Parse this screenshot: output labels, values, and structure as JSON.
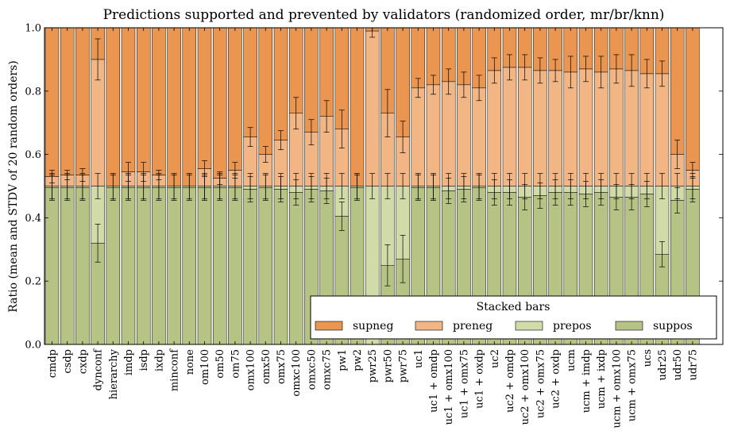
{
  "chart_data": {
    "type": "bar",
    "stacked": true,
    "title": "Predictions supported and prevented by validators (randomized order, mr/br/knn)",
    "xlabel": "",
    "ylabel": "Ratio (mean and STDV of 20 random orders)",
    "ylim": [
      0,
      1
    ],
    "yticks": [
      "0.0",
      "0.2",
      "0.4",
      "0.6",
      "0.8",
      "1.0"
    ],
    "grid": false,
    "legend": {
      "title": "Stacked bars",
      "placement": "lower-right",
      "columns": 4
    },
    "categories": [
      "cmdp",
      "csdp",
      "cxdp",
      "dynconf",
      "hierarchy",
      "imdp",
      "isdp",
      "ixdp",
      "minconf",
      "none",
      "om100",
      "om50",
      "om75",
      "omx100",
      "omx50",
      "omx75",
      "omxc100",
      "omxc50",
      "omxc75",
      "pw1",
      "pw2",
      "pwr25",
      "pwr50",
      "pwr75",
      "uc1",
      "uc1 + omdp",
      "uc1 + omx100",
      "uc1 + omx75",
      "uc1 + oxdp",
      "uc2",
      "uc2 + omdp",
      "uc2 + omx100",
      "uc2 + omx75",
      "uc2 + oxdp",
      "ucm",
      "ucm + imdp",
      "ucm + ixdp",
      "ucm + omx100",
      "ucm + omx75",
      "ucs",
      "udr25",
      "udr50",
      "udr75"
    ],
    "series": [
      {
        "name": "suppos",
        "color": "#b5c484",
        "values": [
          0.495,
          0.495,
          0.495,
          0.32,
          0.495,
          0.495,
          0.495,
          0.495,
          0.495,
          0.495,
          0.495,
          0.495,
          0.495,
          0.49,
          0.495,
          0.49,
          0.48,
          0.49,
          0.485,
          0.405,
          0.495,
          0.0,
          0.25,
          0.27,
          0.495,
          0.495,
          0.485,
          0.49,
          0.495,
          0.48,
          0.48,
          0.465,
          0.47,
          0.48,
          0.48,
          0.475,
          0.48,
          0.465,
          0.465,
          0.475,
          0.285,
          0.455,
          0.49
        ],
        "errors": [
          0.04,
          0.04,
          0.04,
          0.06,
          0.04,
          0.04,
          0.04,
          0.04,
          0.04,
          0.04,
          0.04,
          0.04,
          0.04,
          0.04,
          0.04,
          0.04,
          0.04,
          0.04,
          0.04,
          0.045,
          0.04,
          0.0,
          0.065,
          0.075,
          0.04,
          0.04,
          0.04,
          0.04,
          0.04,
          0.04,
          0.04,
          0.04,
          0.04,
          0.04,
          0.04,
          0.04,
          0.04,
          0.04,
          0.04,
          0.04,
          0.04,
          0.04,
          0.04
        ]
      },
      {
        "name": "prepos",
        "color": "#d1dba8",
        "values": [
          0.005,
          0.005,
          0.005,
          0.18,
          0.005,
          0.005,
          0.005,
          0.005,
          0.005,
          0.005,
          0.005,
          0.005,
          0.005,
          0.01,
          0.005,
          0.01,
          0.02,
          0.01,
          0.015,
          0.095,
          0.005,
          0.5,
          0.25,
          0.23,
          0.005,
          0.005,
          0.015,
          0.01,
          0.005,
          0.02,
          0.02,
          0.035,
          0.03,
          0.02,
          0.02,
          0.025,
          0.02,
          0.035,
          0.035,
          0.025,
          0.215,
          0.045,
          0.01
        ],
        "errors": [
          0.04,
          0.04,
          0.04,
          0.04,
          0.04,
          0.04,
          0.04,
          0.04,
          0.04,
          0.04,
          0.04,
          0.04,
          0.04,
          0.04,
          0.04,
          0.04,
          0.04,
          0.04,
          0.04,
          0.04,
          0.04,
          0.04,
          0.04,
          0.04,
          0.04,
          0.04,
          0.04,
          0.04,
          0.04,
          0.04,
          0.04,
          0.04,
          0.04,
          0.04,
          0.04,
          0.04,
          0.04,
          0.04,
          0.04,
          0.04,
          0.04,
          0.04,
          0.04
        ]
      },
      {
        "name": "preneg",
        "color": "#f2b684",
        "values": [
          0.03,
          0.035,
          0.035,
          0.4,
          0.0,
          0.045,
          0.045,
          0.035,
          0.0,
          0.0,
          0.055,
          0.025,
          0.05,
          0.155,
          0.1,
          0.145,
          0.23,
          0.17,
          0.22,
          0.18,
          0.0,
          0.49,
          0.23,
          0.155,
          0.31,
          0.32,
          0.33,
          0.32,
          0.31,
          0.365,
          0.375,
          0.375,
          0.365,
          0.365,
          0.36,
          0.37,
          0.36,
          0.37,
          0.365,
          0.355,
          0.355,
          0.1,
          0.05
        ],
        "errors": [
          0.02,
          0.015,
          0.02,
          0.065,
          0.0,
          0.03,
          0.03,
          0.015,
          0.0,
          0.0,
          0.025,
          0.02,
          0.025,
          0.03,
          0.025,
          0.03,
          0.05,
          0.04,
          0.05,
          0.06,
          0.0,
          0.02,
          0.075,
          0.05,
          0.03,
          0.03,
          0.04,
          0.04,
          0.04,
          0.04,
          0.04,
          0.04,
          0.04,
          0.035,
          0.05,
          0.04,
          0.05,
          0.045,
          0.05,
          0.045,
          0.04,
          0.045,
          0.025
        ]
      },
      {
        "name": "supneg",
        "color": "#ea9550",
        "values": [
          0.47,
          0.465,
          0.465,
          0.1,
          0.5,
          0.455,
          0.455,
          0.465,
          0.5,
          0.5,
          0.445,
          0.475,
          0.45,
          0.345,
          0.4,
          0.355,
          0.27,
          0.33,
          0.28,
          0.32,
          0.5,
          0.01,
          0.27,
          0.345,
          0.19,
          0.18,
          0.17,
          0.18,
          0.19,
          0.135,
          0.125,
          0.125,
          0.135,
          0.135,
          0.14,
          0.13,
          0.14,
          0.13,
          0.135,
          0.145,
          0.145,
          0.4,
          0.45
        ]
      }
    ]
  }
}
